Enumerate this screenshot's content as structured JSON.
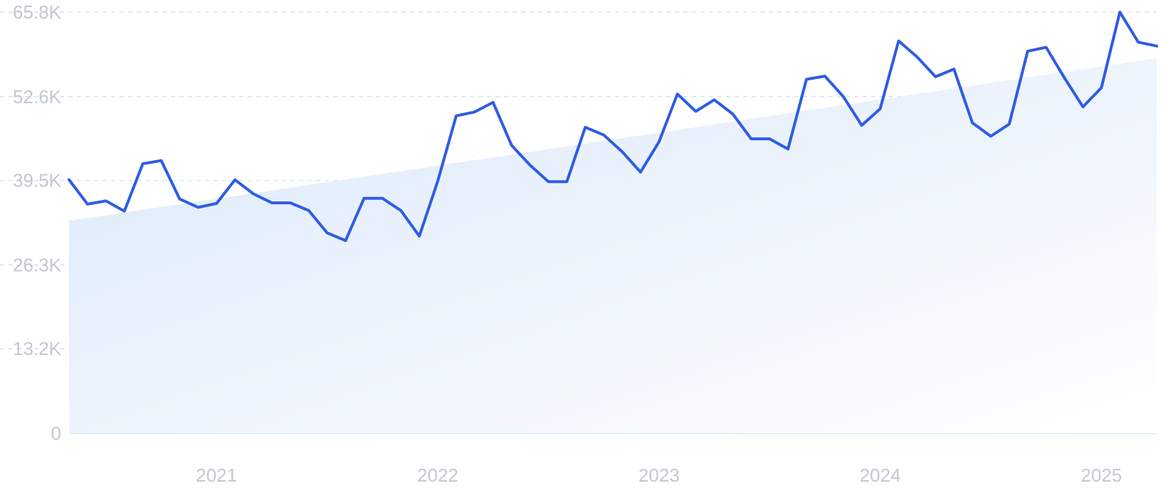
{
  "chart_data": {
    "type": "line",
    "title": "",
    "xlabel": "",
    "ylabel": "",
    "ylim": [
      0,
      65800
    ],
    "xlim": [
      "2020-05",
      "2025-04"
    ],
    "grid": true,
    "y_ticks": [
      {
        "value": 0,
        "label": "0"
      },
      {
        "value": 13200,
        "label": "13.2K"
      },
      {
        "value": 26300,
        "label": "26.3K"
      },
      {
        "value": 39500,
        "label": "39.5K"
      },
      {
        "value": 52600,
        "label": "52.6K"
      },
      {
        "value": 65800,
        "label": "65.8K"
      }
    ],
    "x_ticks": [
      {
        "value": "2021-01",
        "label": "2021"
      },
      {
        "value": "2022-01",
        "label": "2022"
      },
      {
        "value": "2023-01",
        "label": "2023"
      },
      {
        "value": "2024-01",
        "label": "2024"
      },
      {
        "value": "2025-01",
        "label": "2025"
      }
    ],
    "colors": {
      "line": "#2e5ce5",
      "trend_fill_start": "#dbe8fa",
      "trend_fill_end": "#ffffff",
      "grid": "#cde6f2",
      "baseline": "#cfe6f6",
      "tick_label": "#c4c8d0"
    },
    "series": [
      {
        "x": [
          "2020-05",
          "2020-06",
          "2020-07",
          "2020-08",
          "2020-09",
          "2020-10",
          "2020-11",
          "2020-12",
          "2021-01",
          "2021-02",
          "2021-03",
          "2021-04",
          "2021-05",
          "2021-06",
          "2021-07",
          "2021-08",
          "2021-09",
          "2021-10",
          "2021-11",
          "2021-12",
          "2022-01",
          "2022-02",
          "2022-03",
          "2022-04",
          "2022-05",
          "2022-06",
          "2022-07",
          "2022-08",
          "2022-09",
          "2022-10",
          "2022-11",
          "2022-12",
          "2023-01",
          "2023-02",
          "2023-03",
          "2023-04",
          "2023-05",
          "2023-06",
          "2023-07",
          "2023-08",
          "2023-09",
          "2023-10",
          "2023-11",
          "2023-12",
          "2024-01",
          "2024-02",
          "2024-03",
          "2024-04",
          "2024-05",
          "2024-06",
          "2024-07",
          "2024-08",
          "2024-09",
          "2024-10",
          "2024-11",
          "2024-12",
          "2025-01",
          "2025-02",
          "2025-03",
          "2025-04"
        ],
        "values": [
          39600,
          35800,
          36300,
          34700,
          42100,
          42600,
          36600,
          35300,
          35900,
          39600,
          37400,
          36000,
          36000,
          34800,
          31300,
          30100,
          36700,
          36700,
          34800,
          30800,
          39400,
          49600,
          50200,
          51700,
          45000,
          41900,
          39300,
          39300,
          47800,
          46600,
          44000,
          40800,
          45500,
          53000,
          50300,
          52100,
          49900,
          46000,
          46000,
          44400,
          55300,
          55800,
          52600,
          48100,
          50700,
          61300,
          58800,
          55700,
          56900,
          48500,
          46400,
          48300,
          59700,
          60300,
          55500,
          51000,
          54000,
          65800,
          61100,
          60500
        ]
      }
    ],
    "trend": {
      "start": 33200,
      "end": 58600
    }
  }
}
